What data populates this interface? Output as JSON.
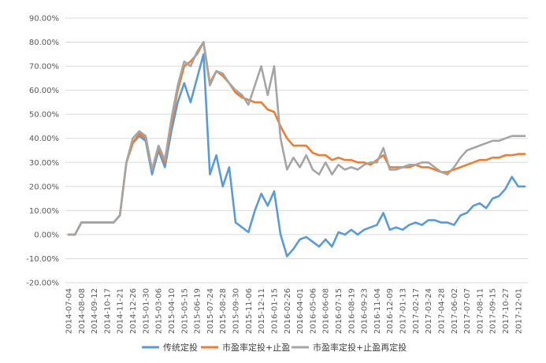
{
  "chart_data": {
    "type": "line",
    "ylim": [
      -20,
      90
    ],
    "y_ticks": [
      "-20.00%",
      "-10.00%",
      "0.00%",
      "10.00%",
      "20.00%",
      "30.00%",
      "40.00%",
      "50.00%",
      "60.00%",
      "70.00%",
      "80.00%",
      "90.00%"
    ],
    "x_tick_labels": [
      "2014-07-04",
      "2014-08-08",
      "2014-09-12",
      "2014-10-17",
      "2014-11-21",
      "2014-12-26",
      "2015-01-30",
      "2015-03-06",
      "2015-04-10",
      "2015-05-15",
      "2015-06-19",
      "2015-07-24",
      "2015-08-28",
      "2015-09-30",
      "2015-11-06",
      "2015-12-11",
      "2016-01-15",
      "2016-02-26",
      "2016-04-01",
      "2016-05-06",
      "2016-06-08",
      "2016-07-15",
      "2016-08-19",
      "2016-09-23",
      "2016-11-04",
      "2016-12-09",
      "2017-01-13",
      "2017-02-17",
      "2017-03-24",
      "2017-04-28",
      "2017-06-02",
      "2017-07-07",
      "2017-08-11",
      "2017-09-15",
      "2017-10-27",
      "2017-12-01"
    ],
    "x": [
      0,
      0.5,
      1,
      1.5,
      2,
      2.5,
      3,
      3.5,
      4,
      4.5,
      5,
      5.5,
      6,
      6.5,
      7,
      7.5,
      8,
      8.5,
      9,
      9.5,
      10,
      10.5,
      11,
      11.5,
      12,
      12.5,
      13,
      13.5,
      14,
      14.5,
      15,
      15.5,
      16,
      16.5,
      17,
      17.5,
      18,
      18.5,
      19,
      19.5,
      20,
      20.5,
      21,
      21.5,
      22,
      22.5,
      23,
      23.5,
      24,
      24.5,
      25,
      25.5,
      26,
      26.5,
      27,
      27.5,
      28,
      28.5,
      29,
      29.5,
      30,
      30.5,
      31,
      31.5,
      32,
      32.5,
      33,
      33.5,
      34,
      34.5,
      35,
      35.5
    ],
    "series": [
      {
        "name": "传统定投",
        "color": "#5B9BD5",
        "values": [
          0,
          0,
          5,
          5,
          5,
          5,
          5,
          5,
          8,
          30,
          38,
          41,
          39,
          25,
          35,
          28,
          43,
          55,
          63,
          55,
          65,
          75,
          25,
          33,
          20,
          28,
          5,
          3,
          1,
          10,
          17,
          12,
          18,
          0,
          -9,
          -6,
          -2,
          -1,
          -3,
          -5,
          -2,
          -5,
          1,
          0,
          2,
          0,
          2,
          3,
          4,
          9,
          2,
          3,
          2,
          4,
          5,
          4,
          6,
          6,
          5,
          5,
          4,
          8,
          9,
          12,
          13,
          11,
          15,
          16,
          19,
          24,
          20,
          20
        ]
      },
      {
        "name": "市盈率定投+止盈",
        "color": "#ED7D31",
        "values": [
          0,
          0,
          5,
          5,
          5,
          5,
          5,
          5,
          8,
          30,
          38,
          42,
          40,
          27,
          36,
          30,
          46,
          60,
          70,
          72,
          75,
          80,
          63,
          68,
          66,
          63,
          59,
          57,
          56,
          55,
          55,
          52,
          51,
          45,
          40,
          37,
          37,
          37,
          34,
          33,
          33,
          31,
          32,
          31,
          31,
          30,
          30,
          29,
          31,
          33,
          28,
          28,
          28,
          28,
          29,
          28,
          28,
          27,
          26,
          26,
          27,
          28,
          29,
          30,
          31,
          31,
          32,
          32,
          33,
          33,
          33.5,
          33.5
        ]
      },
      {
        "name": "市盈率定投+止盈再定投",
        "color": "#A5A5A5",
        "values": [
          0,
          0,
          5,
          5,
          5,
          5,
          5,
          5,
          8,
          30,
          40,
          43,
          41,
          27,
          37,
          31,
          48,
          62,
          72,
          70,
          76,
          80,
          62,
          68,
          67,
          63,
          60,
          58,
          54,
          62,
          70,
          58,
          70,
          40,
          27,
          32,
          28,
          33,
          27,
          25,
          30,
          25,
          29,
          27,
          28,
          27,
          29,
          30,
          30,
          36,
          27,
          27,
          28,
          29,
          29,
          30,
          30,
          28,
          26,
          25,
          28,
          32,
          35,
          36,
          37,
          38,
          39,
          39,
          40,
          41,
          41,
          41
        ]
      }
    ]
  }
}
